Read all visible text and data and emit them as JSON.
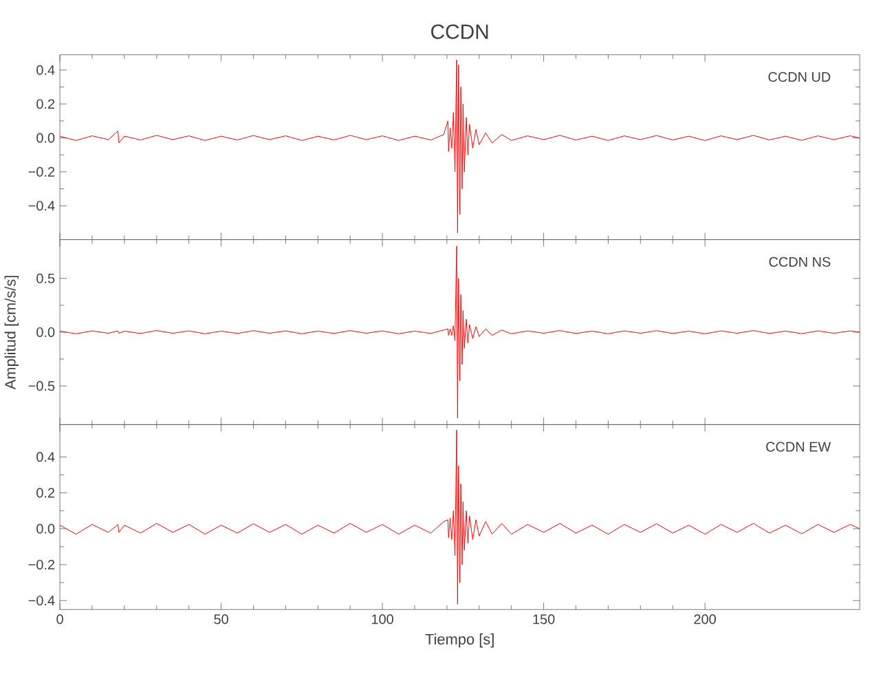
{
  "chart_data": [
    {
      "type": "line",
      "title": "CCDN",
      "annotations": [
        "CCDN UD"
      ],
      "xlim": [
        0,
        248
      ],
      "xticks": [
        0,
        50,
        100,
        150,
        200
      ],
      "ylim": [
        -0.6,
        0.49
      ],
      "yticks": [
        {
          "value": -0.4,
          "label": "−0.4"
        },
        {
          "value": -0.2,
          "label": "−0.2"
        },
        {
          "value": 0,
          "label": "0.0"
        },
        {
          "value": 0.2,
          "label": "0.2"
        },
        {
          "value": 0.4,
          "label": "0.4"
        }
      ],
      "tick_labels": "y",
      "x": [
        0,
        5,
        10,
        15,
        18,
        18.3,
        20,
        25,
        30,
        35,
        40,
        45,
        50,
        55,
        60,
        65,
        70,
        75,
        80,
        85,
        90,
        95,
        100,
        105,
        110,
        115,
        119,
        120.3,
        120.5,
        121,
        121.5,
        122,
        122.5,
        123,
        123.3,
        123.6,
        124,
        124.3,
        124.7,
        125,
        125.4,
        126,
        126.5,
        127,
        128,
        129,
        130,
        132,
        134,
        137,
        140,
        145,
        150,
        155,
        160,
        165,
        170,
        175,
        180,
        185,
        190,
        195,
        200,
        205,
        210,
        215,
        220,
        225,
        230,
        235,
        240,
        245,
        248
      ],
      "series": [
        {
          "color": "#ff0000",
          "values": [
            0.01,
            -0.015,
            0.012,
            -0.01,
            0.04,
            -0.03,
            0.01,
            -0.012,
            0.015,
            -0.01,
            0.012,
            -0.015,
            0.01,
            -0.012,
            0.014,
            -0.01,
            0.012,
            -0.015,
            0.01,
            -0.012,
            0.015,
            -0.01,
            0.012,
            -0.015,
            0.01,
            -0.012,
            0.02,
            0.1,
            -0.08,
            0.06,
            -0.06,
            0.15,
            -0.2,
            0.46,
            -0.56,
            0.43,
            -0.45,
            0.3,
            -0.3,
            0.2,
            -0.2,
            0.12,
            -0.1,
            0.08,
            -0.06,
            0.05,
            -0.04,
            0.03,
            -0.03,
            0.02,
            -0.015,
            0.012,
            -0.01,
            0.015,
            -0.012,
            0.01,
            -0.015,
            0.012,
            -0.01,
            0.014,
            -0.012,
            0.01,
            -0.015,
            0.012,
            -0.01,
            0.015,
            -0.012,
            0.01,
            -0.014,
            0.012,
            -0.01,
            0.012,
            0.0
          ]
        }
      ]
    },
    {
      "type": "line",
      "ylabel": "Amplitud [cm/s/s]",
      "annotations": [
        "CCDN NS"
      ],
      "xlim": [
        0,
        248
      ],
      "xticks": [
        0,
        50,
        100,
        150,
        200
      ],
      "ylim": [
        -0.86,
        0.86
      ],
      "yticks": [
        {
          "value": -0.5,
          "label": "−0.5"
        },
        {
          "value": 0,
          "label": "0.0"
        },
        {
          "value": 0.5,
          "label": "0.5"
        }
      ],
      "tick_labels": "y",
      "x": [
        0,
        5,
        10,
        15,
        18,
        18.3,
        20,
        25,
        30,
        35,
        40,
        45,
        50,
        55,
        60,
        65,
        70,
        75,
        80,
        85,
        90,
        95,
        100,
        105,
        110,
        115,
        119,
        120.3,
        120.5,
        121,
        121.5,
        122,
        122.5,
        123,
        123.3,
        123.6,
        124,
        124.3,
        124.7,
        125,
        125.4,
        126,
        126.5,
        127,
        128,
        129,
        130,
        132,
        134,
        137,
        140,
        145,
        150,
        155,
        160,
        165,
        170,
        175,
        180,
        185,
        190,
        195,
        200,
        205,
        210,
        215,
        220,
        225,
        230,
        235,
        240,
        245,
        248
      ],
      "series": [
        {
          "color": "#ff0000",
          "values": [
            0.01,
            -0.015,
            0.012,
            -0.01,
            0.012,
            -0.01,
            0.01,
            -0.012,
            0.015,
            -0.01,
            0.012,
            -0.015,
            0.01,
            -0.012,
            0.014,
            -0.01,
            0.012,
            -0.015,
            0.01,
            -0.012,
            0.015,
            -0.01,
            0.012,
            -0.015,
            0.01,
            -0.012,
            0.02,
            0.03,
            -0.03,
            0.03,
            -0.03,
            0.06,
            -0.08,
            0.8,
            -0.8,
            0.5,
            -0.45,
            0.35,
            -0.3,
            0.2,
            -0.15,
            0.12,
            -0.1,
            0.07,
            -0.06,
            0.05,
            -0.04,
            0.03,
            -0.03,
            0.02,
            -0.015,
            0.012,
            -0.01,
            0.015,
            -0.012,
            0.01,
            -0.015,
            0.012,
            -0.01,
            0.014,
            -0.012,
            0.01,
            -0.015,
            0.012,
            -0.01,
            0.015,
            -0.012,
            0.01,
            -0.014,
            0.012,
            -0.01,
            0.012,
            0.0
          ]
        }
      ]
    },
    {
      "type": "line",
      "xlabel": "Tiempo [s]",
      "annotations": [
        "CCDN EW"
      ],
      "xlim": [
        0,
        248
      ],
      "xticks": [
        0,
        50,
        100,
        150,
        200
      ],
      "ylim": [
        -0.45,
        0.58
      ],
      "yticks": [
        {
          "value": -0.4,
          "label": "−0.4"
        },
        {
          "value": -0.2,
          "label": "−0.2"
        },
        {
          "value": 0,
          "label": "0.0"
        },
        {
          "value": 0.2,
          "label": "0.2"
        },
        {
          "value": 0.4,
          "label": "0.4"
        }
      ],
      "x": [
        0,
        5,
        10,
        15,
        18,
        18.3,
        20,
        25,
        30,
        35,
        40,
        45,
        50,
        55,
        60,
        65,
        70,
        75,
        80,
        85,
        90,
        95,
        100,
        105,
        110,
        115,
        119,
        120.3,
        120.5,
        121,
        121.5,
        122,
        122.5,
        123,
        123.3,
        123.6,
        124,
        124.3,
        124.7,
        125,
        125.4,
        126,
        126.5,
        127,
        128,
        129,
        130,
        132,
        134,
        137,
        140,
        145,
        150,
        155,
        160,
        165,
        170,
        175,
        180,
        185,
        190,
        195,
        200,
        205,
        210,
        215,
        220,
        225,
        230,
        235,
        240,
        245,
        248
      ],
      "series": [
        {
          "color": "#ff0000",
          "values": [
            0.02,
            -0.03,
            0.024,
            -0.02,
            0.024,
            -0.02,
            0.02,
            -0.024,
            0.03,
            -0.02,
            0.024,
            -0.03,
            0.02,
            -0.024,
            0.028,
            -0.02,
            0.024,
            -0.03,
            0.02,
            -0.024,
            0.03,
            -0.02,
            0.024,
            -0.03,
            0.02,
            -0.024,
            0.04,
            0.05,
            -0.05,
            0.06,
            -0.06,
            0.1,
            -0.15,
            0.55,
            -0.42,
            0.35,
            -0.3,
            0.25,
            -0.2,
            0.15,
            -0.12,
            0.1,
            -0.08,
            0.07,
            -0.06,
            0.05,
            -0.04,
            0.04,
            -0.03,
            0.03,
            -0.03,
            0.024,
            -0.02,
            0.03,
            -0.024,
            0.02,
            -0.03,
            0.024,
            -0.02,
            0.028,
            -0.024,
            0.02,
            -0.03,
            0.024,
            -0.02,
            0.03,
            -0.024,
            0.02,
            -0.028,
            0.024,
            -0.02,
            0.024,
            0.0
          ]
        }
      ]
    }
  ]
}
